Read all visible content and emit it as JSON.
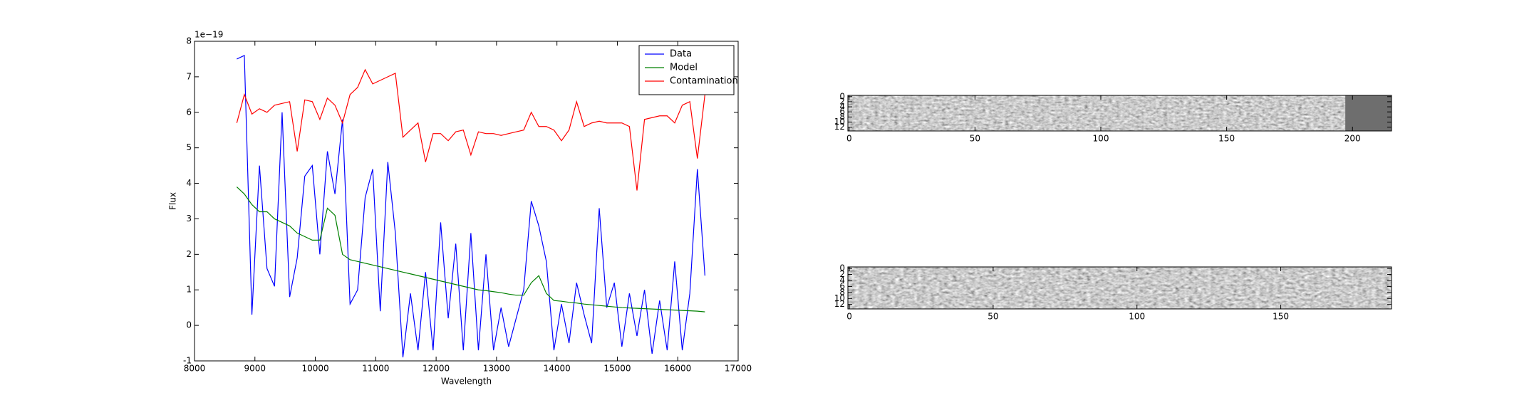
{
  "chart_data": [
    {
      "type": "line",
      "xlabel": "Wavelength",
      "ylabel": "Flux",
      "offset_text": "1e−19",
      "xlim": [
        8000,
        17000
      ],
      "xticks": [
        8000,
        9000,
        10000,
        11000,
        12000,
        13000,
        14000,
        15000,
        16000,
        17000
      ],
      "ylim": [
        -1,
        8
      ],
      "yticks": [
        -1,
        0,
        1,
        2,
        3,
        4,
        5,
        6,
        7,
        8
      ],
      "legend": "upper right",
      "x": [
        8700,
        8825,
        8950,
        9075,
        9200,
        9325,
        9450,
        9575,
        9700,
        9825,
        9950,
        10075,
        10200,
        10325,
        10450,
        10575,
        10700,
        10825,
        10950,
        11075,
        11200,
        11325,
        11450,
        11575,
        11700,
        11825,
        11950,
        12075,
        12200,
        12325,
        12450,
        12575,
        12700,
        12825,
        12950,
        13075,
        13200,
        13325,
        13450,
        13575,
        13700,
        13825,
        13950,
        14075,
        14200,
        14325,
        14450,
        14575,
        14700,
        14825,
        14950,
        15075,
        15200,
        15325,
        15450,
        15575,
        15700,
        15825,
        15950,
        16075,
        16200,
        16325,
        16450
      ],
      "series": [
        {
          "name": "Data",
          "color": "#0000ff",
          "values": [
            7.5,
            7.6,
            0.3,
            4.5,
            1.6,
            1.1,
            6.0,
            0.8,
            1.9,
            4.2,
            4.5,
            2.0,
            4.9,
            3.7,
            5.8,
            0.6,
            1.0,
            3.6,
            4.4,
            0.4,
            4.6,
            2.6,
            -0.9,
            0.9,
            -0.7,
            1.5,
            -0.7,
            2.9,
            0.2,
            2.3,
            -0.7,
            2.6,
            -0.7,
            2.0,
            -0.7,
            0.5,
            -0.6,
            0.2,
            1.0,
            3.5,
            2.8,
            1.8,
            -0.7,
            0.6,
            -0.5,
            1.2,
            0.3,
            -0.5,
            3.3,
            0.5,
            1.2,
            -0.6,
            0.9,
            -0.3,
            1.0,
            -0.8,
            0.7,
            -0.7,
            1.8,
            -0.7,
            0.9,
            4.4,
            1.4
          ]
        },
        {
          "name": "Model",
          "color": "#008000",
          "values": [
            3.9,
            3.7,
            3.4,
            3.2,
            3.2,
            3.0,
            2.9,
            2.8,
            2.6,
            2.5,
            2.4,
            2.4,
            3.3,
            3.1,
            2.0,
            1.85,
            1.8,
            1.75,
            1.7,
            1.65,
            1.6,
            1.55,
            1.5,
            1.45,
            1.4,
            1.35,
            1.3,
            1.25,
            1.2,
            1.15,
            1.1,
            1.05,
            1.0,
            0.98,
            0.95,
            0.92,
            0.88,
            0.85,
            0.85,
            1.2,
            1.4,
            0.9,
            0.7,
            0.68,
            0.65,
            0.63,
            0.6,
            0.58,
            0.56,
            0.54,
            0.52,
            0.5,
            0.49,
            0.48,
            0.47,
            0.46,
            0.45,
            0.44,
            0.43,
            0.42,
            0.41,
            0.4,
            0.38
          ]
        },
        {
          "name": "Contamination",
          "color": "#ff0000",
          "values": [
            5.7,
            6.5,
            5.95,
            6.1,
            6.0,
            6.2,
            6.25,
            6.3,
            4.9,
            6.35,
            6.3,
            5.8,
            6.4,
            6.2,
            5.7,
            6.5,
            6.7,
            7.2,
            6.8,
            6.9,
            7.0,
            7.1,
            5.3,
            5.5,
            5.7,
            4.6,
            5.4,
            5.4,
            5.2,
            5.45,
            5.5,
            4.8,
            5.45,
            5.4,
            5.4,
            5.35,
            5.4,
            5.45,
            5.5,
            6.0,
            5.6,
            5.6,
            5.5,
            5.2,
            5.5,
            6.3,
            5.6,
            5.7,
            5.75,
            5.7,
            5.7,
            5.7,
            5.6,
            3.8,
            5.8,
            5.85,
            5.9,
            5.9,
            5.7,
            6.2,
            6.3,
            4.7,
            6.5
          ]
        }
      ]
    },
    {
      "type": "image",
      "xlim": [
        -0.5,
        215.5
      ],
      "xticks": [
        0,
        50,
        100,
        150,
        200
      ],
      "ylim": [
        13.5,
        -0.5
      ],
      "yticks": [
        0,
        2,
        4,
        6,
        8,
        10,
        12
      ]
    },
    {
      "type": "image",
      "xlim": [
        -0.5,
        188.5
      ],
      "xticks": [
        0,
        50,
        100,
        150
      ],
      "ylim": [
        13.5,
        -0.5
      ],
      "yticks": [
        0,
        2,
        4,
        6,
        8,
        10,
        12
      ]
    }
  ]
}
